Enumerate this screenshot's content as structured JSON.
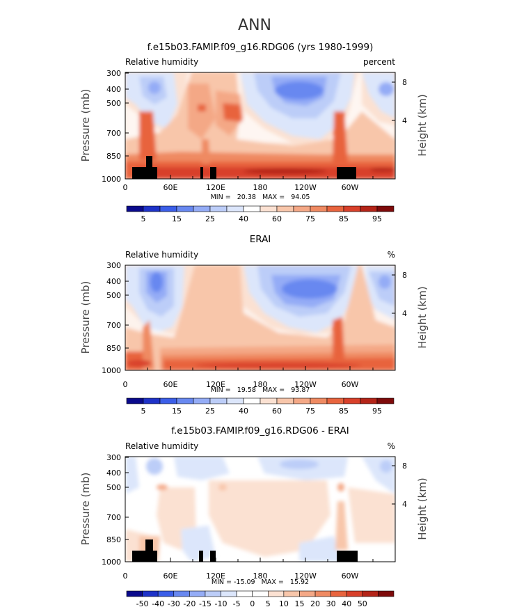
{
  "page_title": "ANN",
  "colors": {
    "seq": [
      "#0a0a8c",
      "#1e32c8",
      "#3b5ee8",
      "#6888f0",
      "#94acf6",
      "#bccdf8",
      "#dce6fb",
      "#ffffff",
      "#fbe1d2",
      "#f8c6aa",
      "#f4a886",
      "#ef8a62",
      "#e8643e",
      "#d8402a",
      "#b42418",
      "#7e0a0a"
    ],
    "diff": [
      "#0a0a8c",
      "#1e32c8",
      "#3b5ee8",
      "#6888f0",
      "#94acf6",
      "#bccdf8",
      "#dce6fb",
      "#ffffff",
      "#ffffff",
      "#fbe1d2",
      "#f8c6aa",
      "#f4a886",
      "#ef8a62",
      "#e8643e",
      "#d8402a",
      "#b42418",
      "#7e0a0a"
    ]
  },
  "chart_data": [
    {
      "type": "heatmap",
      "title": "f.e15b03.FAMIP.f09_g16.RDG06 (yrs 1980-1999)",
      "left_label": "Relative humidity",
      "right_label": "percent",
      "ylabel": "Pressure (mb)",
      "y2label": "Height (km)",
      "yticks": [
        "300",
        "400",
        "500",
        "700",
        "850",
        "1000"
      ],
      "y2ticks": [
        "8",
        "4"
      ],
      "xticks": [
        "0",
        "60E",
        "120E",
        "180",
        "120W",
        "60W"
      ],
      "minmax": "MIN =   20.38   MAX =   94.05",
      "colorbar_labels": [
        "5",
        "15",
        "25",
        "40",
        "60",
        "75",
        "85",
        "95"
      ]
    },
    {
      "type": "heatmap",
      "title": "ERAI",
      "left_label": "Relative humidity",
      "right_label": "%",
      "ylabel": "Pressure (mb)",
      "y2label": "Height (km)",
      "yticks": [
        "300",
        "400",
        "500",
        "700",
        "850",
        "1000"
      ],
      "y2ticks": [
        "8",
        "4"
      ],
      "xticks": [
        "0",
        "60E",
        "120E",
        "180",
        "120W",
        "60W"
      ],
      "minmax": "MIN =   19.58   MAX =   93.87",
      "colorbar_labels": [
        "5",
        "15",
        "25",
        "40",
        "60",
        "75",
        "85",
        "95"
      ]
    },
    {
      "type": "heatmap",
      "title": "f.e15b03.FAMIP.f09_g16.RDG06 - ERAI",
      "left_label": "Relative humidity",
      "right_label": "%",
      "ylabel": "Pressure (mb)",
      "y2label": "Height (km)",
      "yticks": [
        "300",
        "400",
        "500",
        "700",
        "850",
        "1000"
      ],
      "y2ticks": [
        "8",
        "4"
      ],
      "xticks": [
        "0",
        "60E",
        "120E",
        "180",
        "120W",
        "60W"
      ],
      "minmax": "MIN = -15.09   MAX =   15.92",
      "colorbar_labels": [
        "-50",
        "-40",
        "-30",
        "-20",
        "-15",
        "-10",
        "-5",
        "0",
        "5",
        "10",
        "15",
        "20",
        "30",
        "40",
        "50"
      ]
    }
  ]
}
